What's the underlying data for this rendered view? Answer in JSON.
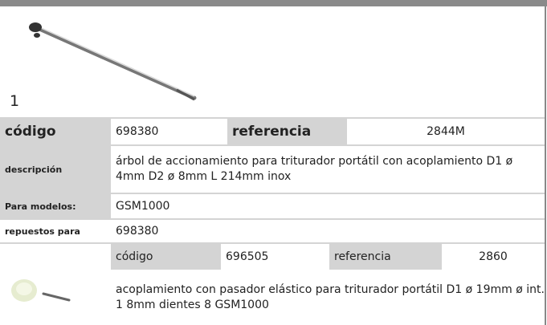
{
  "item": {
    "number": "1"
  },
  "main": {
    "code_label": "código",
    "code": "698380",
    "ref_label": "referencia",
    "ref": "2844M",
    "description_label": "descripción",
    "description": "árbol de accionamiento  para triturador portátil con acoplamiento D1 ø 4mm D2 ø 8mm L 214mm inox",
    "models_label": "Para modelos:",
    "models": "GSM1000",
    "spares_label": "repuestos para",
    "spares": "698380"
  },
  "spare": {
    "code_label": "código",
    "code": "696505",
    "ref_label": "referencia",
    "ref": "2860",
    "description": "acoplamiento  con pasador elástico para triturador portátil D1 ø 19mm ø int. 1 8mm dientes 8 GSM1000"
  }
}
